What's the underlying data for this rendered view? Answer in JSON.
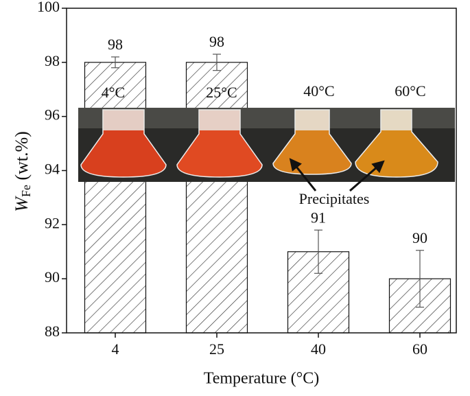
{
  "chart_data": {
    "type": "bar",
    "ylabel": {
      "main": "W",
      "sub": "Fe",
      "unit": " (wt.%)"
    },
    "xlabel": "Temperature (°C)",
    "categories": [
      "4",
      "25",
      "40",
      "60"
    ],
    "values": [
      98,
      98,
      91,
      90
    ],
    "errors": [
      0.2,
      0.3,
      0.8,
      1.05
    ],
    "ylim": [
      88,
      100
    ],
    "yticks": [
      88,
      90,
      92,
      94,
      96,
      98,
      100
    ],
    "annotations": {
      "photo_labels": [
        "4°C",
        "25°C",
        "40°C",
        "60°C"
      ],
      "arrow_label": "Precipitates"
    }
  }
}
